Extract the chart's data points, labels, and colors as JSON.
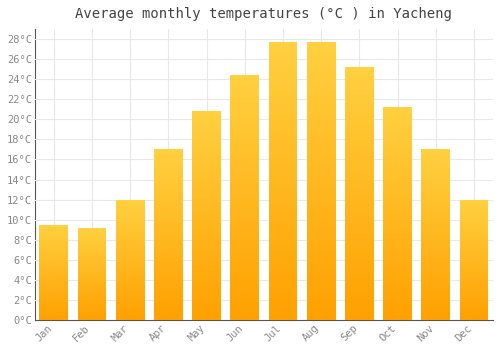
{
  "title": "Average monthly temperatures (°C ) in Yacheng",
  "months": [
    "Jan",
    "Feb",
    "Mar",
    "Apr",
    "May",
    "Jun",
    "Jul",
    "Aug",
    "Sep",
    "Oct",
    "Nov",
    "Dec"
  ],
  "temperatures": [
    9.5,
    9.2,
    12.0,
    17.0,
    20.8,
    24.4,
    27.7,
    27.7,
    25.2,
    21.2,
    17.0,
    12.0
  ],
  "bar_color": "#FFA820",
  "ylim": [
    0,
    29
  ],
  "yticks": [
    0,
    2,
    4,
    6,
    8,
    10,
    12,
    14,
    16,
    18,
    20,
    22,
    24,
    26,
    28
  ],
  "ytick_labels": [
    "0°C",
    "2°C",
    "4°C",
    "6°C",
    "8°C",
    "10°C",
    "12°C",
    "14°C",
    "16°C",
    "18°C",
    "20°C",
    "22°C",
    "24°C",
    "26°C",
    "28°C"
  ],
  "figure_bg": "#ffffff",
  "plot_bg": "#ffffff",
  "grid_color": "#e8e8e8",
  "title_fontsize": 10,
  "tick_fontsize": 7.5,
  "font_family": "monospace",
  "tick_color": "#888888",
  "title_color": "#444444",
  "bar_width": 0.75,
  "figsize": [
    5.0,
    3.5
  ],
  "dpi": 100
}
